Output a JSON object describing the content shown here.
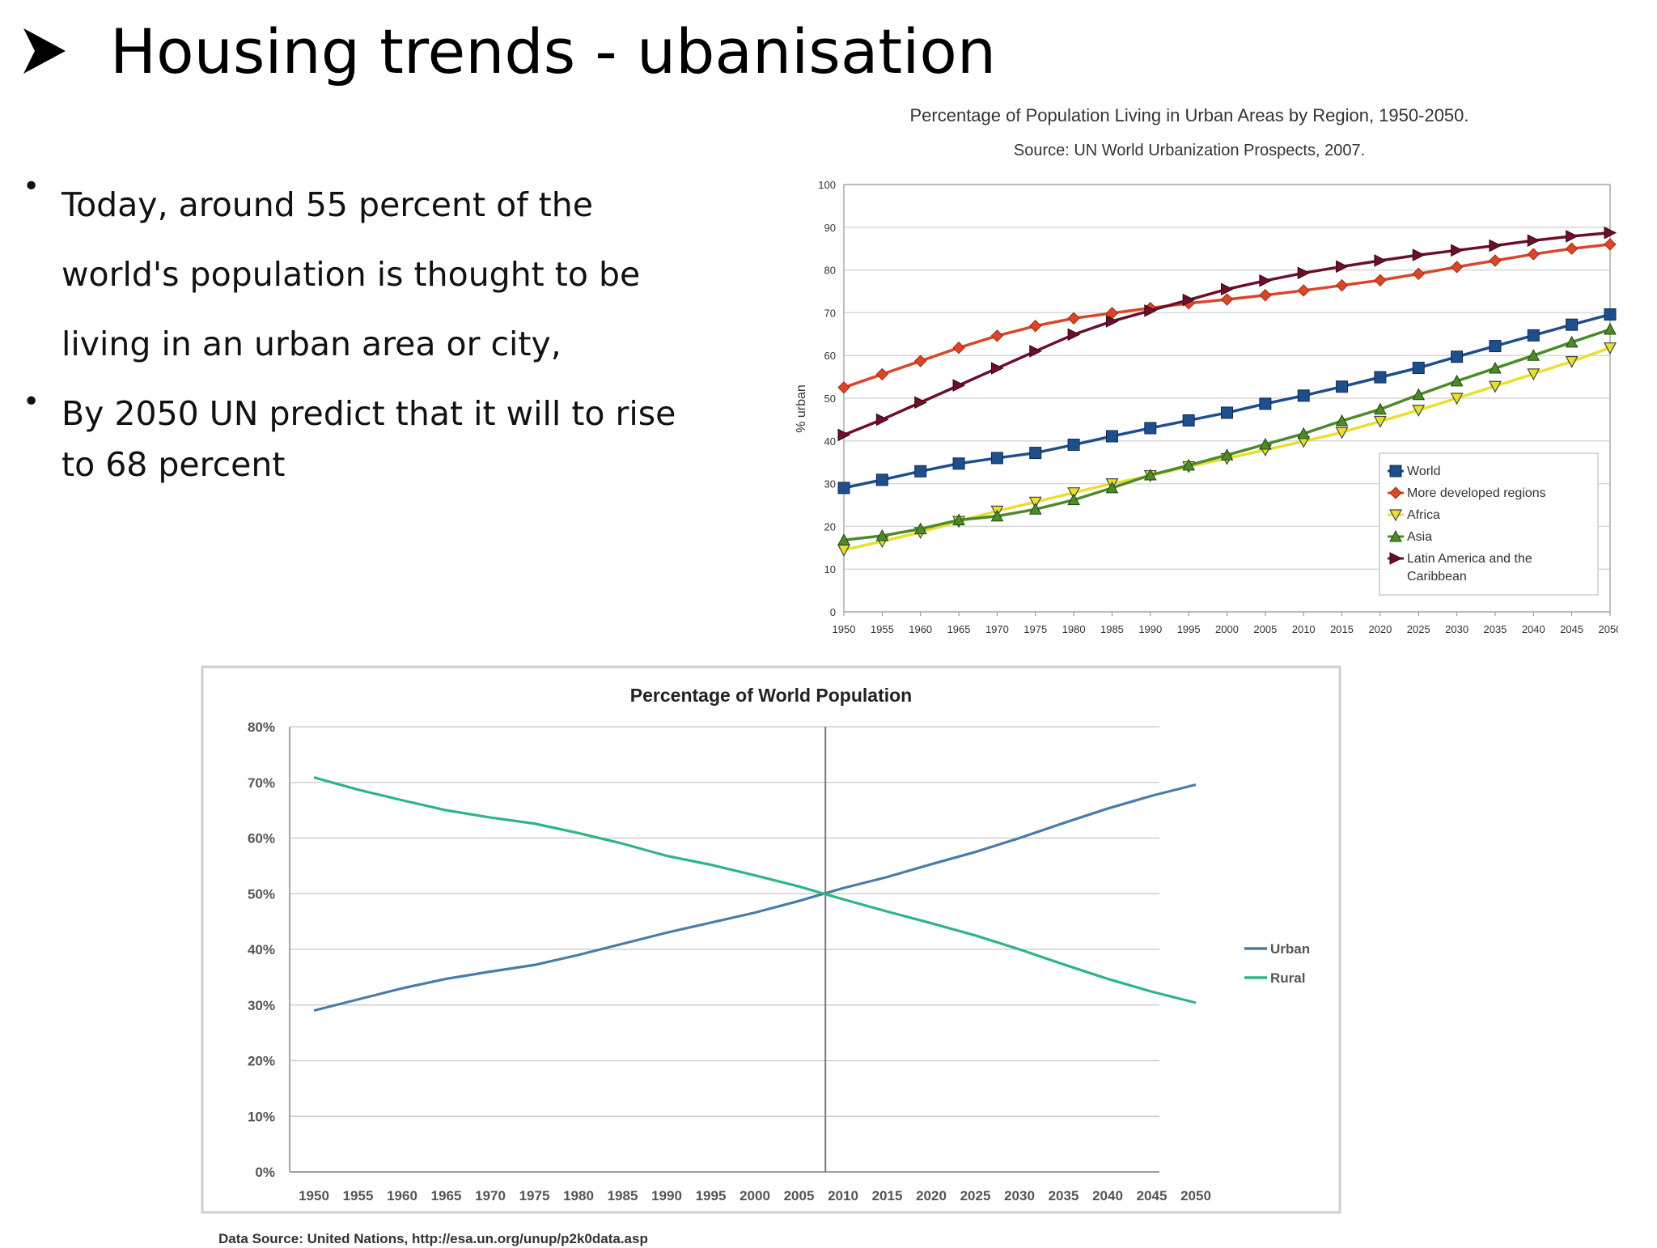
{
  "slide": {
    "title": "Housing trends - ubanisation",
    "bullets": [
      {
        "lines": [
          "Today, around 55 percent of the",
          "world's population  is thought to be",
          "living in an urban area or city,"
        ]
      },
      {
        "lines": [
          "By 2050 UN predict that it will to rise",
          "to 68  percent"
        ]
      }
    ]
  },
  "chart_data": [
    {
      "type": "line",
      "title": "Percentage of Population Living in Urban Areas by Region, 1950-2050.",
      "subtitle": "Source: UN World Urbanization Prospects, 2007.",
      "xlabel": "",
      "ylabel": "% urban",
      "ylim": [
        0,
        100
      ],
      "yticks": [
        0,
        10,
        20,
        30,
        40,
        50,
        60,
        70,
        80,
        90,
        100
      ],
      "grid": true,
      "legend": "bottom-right",
      "x": [
        1950,
        1955,
        1960,
        1965,
        1970,
        1975,
        1980,
        1985,
        1990,
        1995,
        2000,
        2005,
        2010,
        2015,
        2020,
        2025,
        2030,
        2035,
        2040,
        2045,
        2050
      ],
      "series": [
        {
          "name": "World",
          "color": "#1f4e8c",
          "marker": "square",
          "values": [
            29,
            30.9,
            32.9,
            34.7,
            36,
            37.2,
            39.1,
            41.1,
            43,
            44.8,
            46.6,
            48.7,
            50.6,
            52.7,
            54.9,
            57.1,
            59.7,
            62.2,
            64.7,
            67.2,
            69.6
          ]
        },
        {
          "name": "More developed regions",
          "color": "#d9472b",
          "marker": "diamond",
          "values": [
            52.5,
            55.6,
            58.7,
            61.8,
            64.6,
            66.9,
            68.7,
            69.9,
            71.1,
            72.2,
            73.1,
            74.1,
            75.2,
            76.4,
            77.6,
            79.1,
            80.7,
            82.2,
            83.7,
            85,
            86
          ]
        },
        {
          "name": "Africa",
          "color": "#e8e030",
          "marker": "triangle-down",
          "values": [
            14.5,
            16.5,
            18.6,
            21.2,
            23.6,
            25.7,
            27.9,
            30,
            31.9,
            34,
            35.9,
            37.9,
            39.9,
            42,
            44.6,
            47.2,
            50,
            52.8,
            55.7,
            58.6,
            61.8
          ]
        },
        {
          "name": "Asia",
          "color": "#4e8a2a",
          "marker": "triangle-up",
          "values": [
            16.8,
            17.8,
            19.4,
            21.5,
            22.4,
            24,
            26.2,
            29,
            32,
            34.3,
            36.7,
            39.2,
            41.7,
            44.7,
            47.4,
            50.8,
            54,
            57,
            60,
            63.1,
            66.1
          ]
        },
        {
          "name": "Latin America and the Caribbean",
          "color": "#6b1027",
          "marker": "triangle-right",
          "values": [
            41.4,
            45,
            49,
            53,
            57,
            61,
            64.9,
            68,
            70.5,
            73,
            75.5,
            77.5,
            79.3,
            80.8,
            82.2,
            83.5,
            84.6,
            85.7,
            86.9,
            87.9,
            88.7
          ]
        }
      ]
    },
    {
      "type": "line",
      "title": "Percentage of World Population",
      "xlabel": "",
      "ylabel": "",
      "ylim": [
        0,
        80
      ],
      "yticks": [
        "0%",
        "10%",
        "20%",
        "30%",
        "40%",
        "50%",
        "60%",
        "70%",
        "80%"
      ],
      "grid": true,
      "legend": "right",
      "marker_line_x": 2008,
      "source_note": "Data Source: United Nations, http://esa.un.org/unup/p2k0data.asp",
      "x": [
        1950,
        1955,
        1960,
        1965,
        1970,
        1975,
        1980,
        1985,
        1990,
        1995,
        2000,
        2005,
        2010,
        2015,
        2020,
        2025,
        2030,
        2035,
        2040,
        2045,
        2050
      ],
      "series": [
        {
          "name": "Urban",
          "color": "#4a7ca8",
          "values": [
            29,
            31,
            33,
            34.7,
            36,
            37.2,
            39,
            41,
            43,
            44.8,
            46.6,
            48.7,
            51,
            53,
            55.3,
            57.5,
            60,
            62.7,
            65.3,
            67.6,
            69.6
          ]
        },
        {
          "name": "Rural",
          "color": "#2fb585",
          "values": [
            70.9,
            68.7,
            66.8,
            65,
            63.7,
            62.6,
            60.9,
            59,
            56.8,
            55.2,
            53.3,
            51.3,
            49,
            46.8,
            44.7,
            42.5,
            40,
            37.3,
            34.7,
            32.4,
            30.4
          ]
        }
      ]
    }
  ]
}
